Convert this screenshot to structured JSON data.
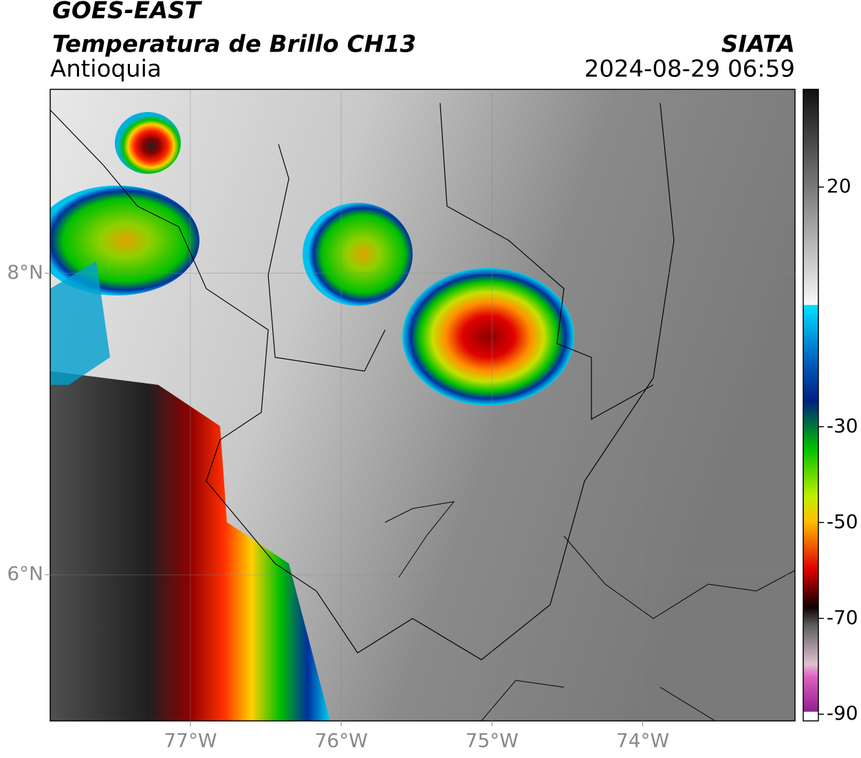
{
  "header": {
    "satellite": "GOES-EAST",
    "product": "Temperatura de Brillo CH13",
    "region": "Antioquia",
    "source": "SIATA",
    "datetime": "2024-08-29 06:59"
  },
  "map": {
    "xlim": [
      -77.93,
      -72.99
    ],
    "ylim": [
      5.03,
      9.22
    ],
    "xticks": [
      {
        "value": -77,
        "label": "77°W"
      },
      {
        "value": -76,
        "label": "76°W"
      },
      {
        "value": -75,
        "label": "75°W"
      },
      {
        "value": -74,
        "label": "74°W"
      }
    ],
    "yticks": [
      {
        "value": 8,
        "label": "8°N"
      },
      {
        "value": 6,
        "label": "6°N"
      }
    ],
    "grid": true
  },
  "colorbar": {
    "lim": [
      -91.4,
      40.4
    ],
    "ticks": [
      20,
      -30,
      -50,
      -70,
      -90
    ]
  }
}
